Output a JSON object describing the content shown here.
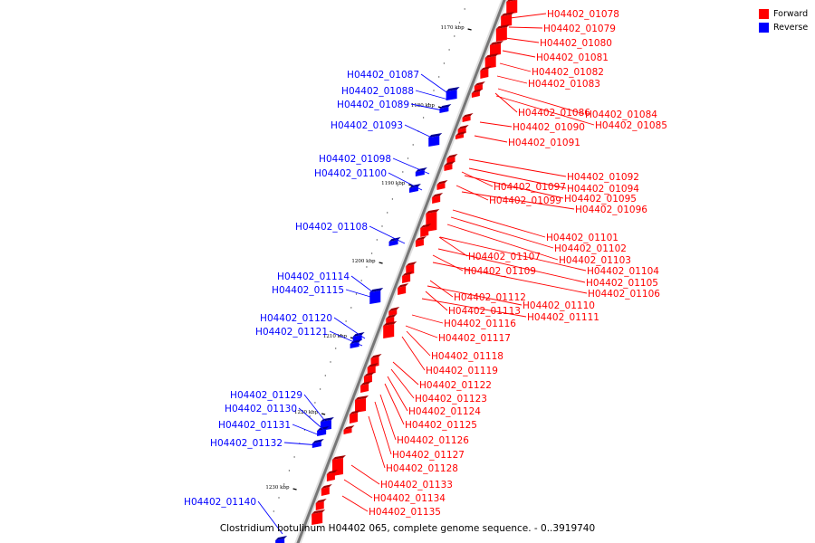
{
  "legend": {
    "forward_label": "Forward",
    "reverse_label": "Reverse",
    "forward_color": "#ff0000",
    "reverse_color": "#0000ff"
  },
  "caption": "Clostridium botulinum H04402 065, complete genome sequence. - 0..3919740",
  "scale_labels": [
    "1170 kbp",
    "1180 kbp",
    "1190 kbp",
    "1200 kbp",
    "1210 kbp",
    "1220 kbp",
    "1230 kbp"
  ],
  "forward_genes": [
    "H04402_01078",
    "H04402_01079",
    "H04402_01080",
    "H04402_01081",
    "H04402_01082",
    "H04402_01083",
    "H04402_01086",
    "H04402_01084",
    "H04402_01085",
    "H04402_01090",
    "H04402_01091",
    "H04402_01092",
    "H04402_01094",
    "H04402_01097",
    "H04402_01095",
    "H04402_01099",
    "H04402_01096",
    "H04402_01101",
    "H04402_01102",
    "H04402_01103",
    "H04402_01107",
    "H04402_01104",
    "H04402_01109",
    "H04402_01105",
    "H04402_01106",
    "H04402_01112",
    "H04402_01110",
    "H04402_01113",
    "H04402_01111",
    "H04402_01116",
    "H04402_01117",
    "H04402_01118",
    "H04402_01119",
    "H04402_01122",
    "H04402_01123",
    "H04402_01124",
    "H04402_01125",
    "H04402_01126",
    "H04402_01127",
    "H04402_01128",
    "H04402_01133",
    "H04402_01134",
    "H04402_01135"
  ],
  "reverse_genes": [
    "H04402_01087",
    "H04402_01088",
    "H04402_01089",
    "H04402_01093",
    "H04402_01098",
    "H04402_01100",
    "H04402_01108",
    "H04402_01114",
    "H04402_01115",
    "H04402_01120",
    "H04402_01121",
    "H04402_01129",
    "H04402_01130",
    "H04402_01131",
    "H04402_01132",
    "H04402_01140"
  ]
}
